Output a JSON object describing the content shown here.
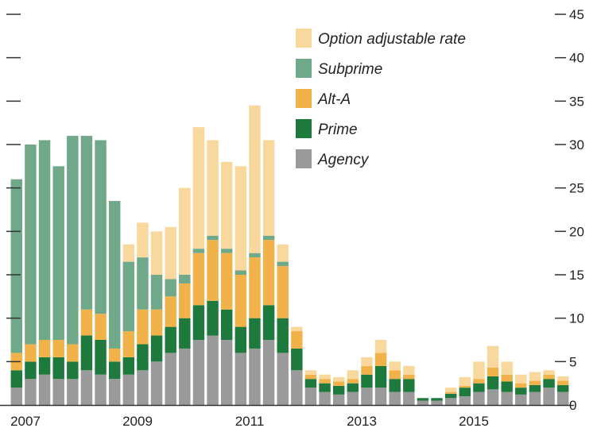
{
  "chart_data": {
    "type": "bar",
    "stacked": true,
    "title": "",
    "xlabel": "",
    "ylabel": "",
    "ylim": [
      0,
      45
    ],
    "y_ticks": [
      0,
      5,
      10,
      15,
      20,
      25,
      30,
      35,
      40,
      45
    ],
    "x_ticks": [
      "2007",
      "2009",
      "2011",
      "2013",
      "2015"
    ],
    "legend_position": "top-center",
    "grid": false,
    "colors": {
      "Agency": "#9a9a9a",
      "Prime": "#1e7a3c",
      "Alt-A": "#f2b24a",
      "Subprime": "#6fa98a",
      "Option adjustable rate": "#f8d89c",
      "axis": "#333333"
    },
    "legend_order": [
      "Option adjustable rate",
      "Subprime",
      "Alt-A",
      "Prime",
      "Agency"
    ],
    "x": [
      "2007-01",
      "2007-04",
      "2007-07",
      "2007-10",
      "2008-01",
      "2008-04",
      "2008-07",
      "2008-10",
      "2009-01",
      "2009-04",
      "2009-07",
      "2009-10",
      "2010-01",
      "2010-04",
      "2010-07",
      "2010-10",
      "2011-01",
      "2011-04",
      "2011-07",
      "2011-10",
      "2012-01",
      "2012-04",
      "2012-07",
      "2012-10",
      "2013-01",
      "2013-04",
      "2013-07",
      "2013-10",
      "2014-01",
      "2014-04",
      "2014-07",
      "2014-10",
      "2015-01",
      "2015-04",
      "2015-07",
      "2015-10",
      "2016-01",
      "2016-04",
      "2016-07",
      "2016-10"
    ],
    "series": [
      {
        "name": "Agency",
        "values": [
          2,
          3,
          3.5,
          3,
          3,
          4,
          3.5,
          3,
          3.5,
          4,
          5,
          6,
          6.5,
          7.5,
          8,
          7.5,
          6,
          6.5,
          7.5,
          6,
          4,
          2,
          1.5,
          1.2,
          1.5,
          2,
          2,
          1.5,
          1.5,
          0.5,
          0.5,
          0.8,
          1,
          1.5,
          1.8,
          1.5,
          1.2,
          1.5,
          2,
          1.5
        ]
      },
      {
        "name": "Prime",
        "values": [
          2,
          2,
          2,
          2.5,
          2,
          4,
          4,
          2,
          2,
          3,
          3,
          3,
          3.5,
          4,
          4,
          3.5,
          3,
          3.5,
          4,
          4,
          2.5,
          1,
          1,
          1,
          1,
          1.5,
          2.5,
          1.5,
          1.5,
          0.3,
          0.3,
          0.5,
          1,
          1,
          1.5,
          1.2,
          0.8,
          0.8,
          1,
          0.8
        ]
      },
      {
        "name": "Alt-A",
        "values": [
          2,
          2,
          2,
          2,
          2,
          3,
          3,
          1.5,
          3,
          4,
          3,
          3.5,
          4,
          6,
          7,
          6.5,
          6,
          7,
          7.5,
          6,
          2,
          0.5,
          0.5,
          0.5,
          0.5,
          1,
          1.5,
          1,
          0.5,
          0,
          0,
          0.2,
          0.2,
          0.5,
          1,
          0.8,
          0.5,
          0.5,
          0.5,
          0.5
        ]
      },
      {
        "name": "Subprime",
        "values": [
          20,
          23,
          23,
          20,
          24,
          20,
          20,
          17,
          8,
          6,
          4,
          2,
          1,
          0.5,
          0.5,
          0.5,
          0.5,
          0.5,
          0.5,
          0.5,
          0,
          0,
          0,
          0,
          0,
          0,
          0,
          0,
          0,
          0,
          0,
          0,
          0,
          0,
          0,
          0,
          0,
          0,
          0,
          0
        ]
      },
      {
        "name": "Option adjustable rate",
        "values": [
          0,
          0,
          0,
          0,
          0,
          0,
          0,
          0,
          2,
          4,
          5,
          6,
          10,
          14,
          11,
          10,
          12,
          17,
          11,
          2,
          0.5,
          0.5,
          0.5,
          0.5,
          1,
          1,
          1.5,
          1,
          1,
          0,
          0,
          0.5,
          1,
          2,
          2.5,
          1.5,
          1,
          1,
          0.5,
          0.5
        ]
      }
    ]
  }
}
